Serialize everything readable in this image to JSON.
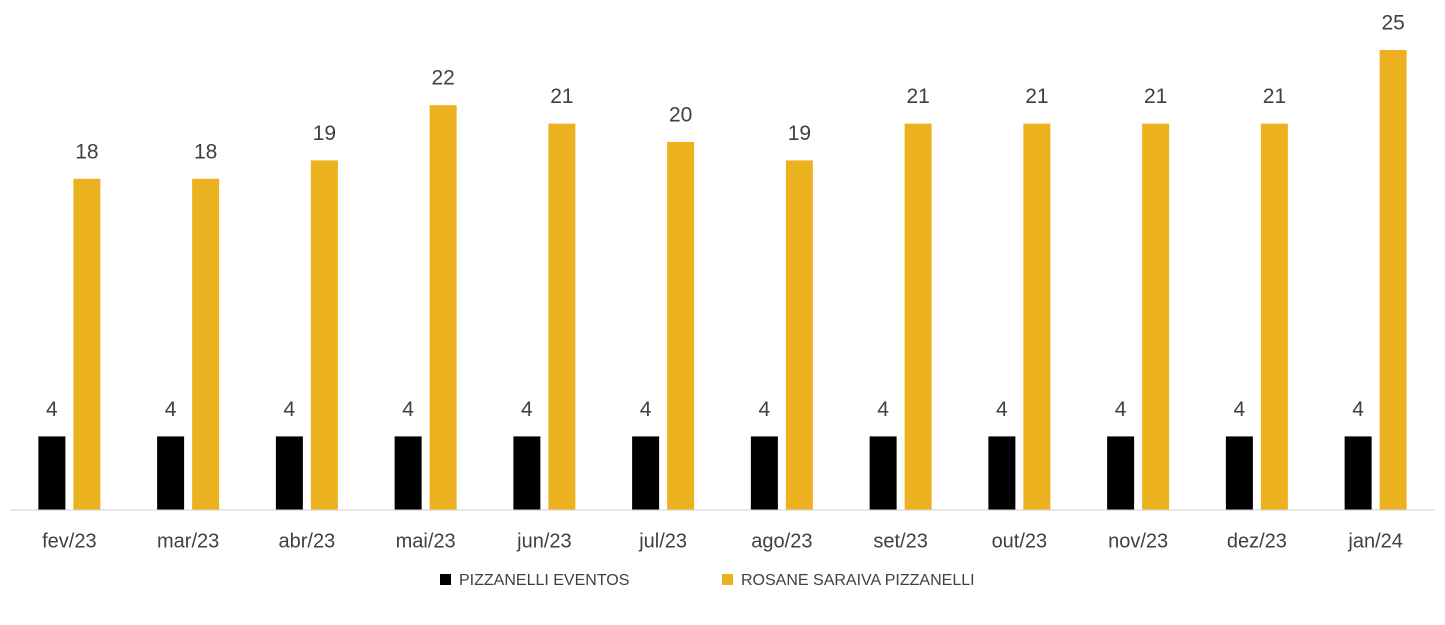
{
  "chart_data": {
    "type": "bar",
    "categories": [
      "fev/23",
      "mar/23",
      "abr/23",
      "mai/23",
      "jun/23",
      "jul/23",
      "ago/23",
      "set/23",
      "out/23",
      "nov/23",
      "dez/23",
      "jan/24"
    ],
    "series": [
      {
        "name": "PIZZANELLI EVENTOS",
        "color": "#000000",
        "values": [
          4,
          4,
          4,
          4,
          4,
          4,
          4,
          4,
          4,
          4,
          4,
          4
        ]
      },
      {
        "name": "ROSANE SARAIVA PIZZANELLI",
        "color": "#ebb11f",
        "values": [
          18,
          18,
          19,
          22,
          21,
          20,
          19,
          21,
          21,
          21,
          21,
          25
        ]
      }
    ],
    "legend": "bottom"
  }
}
